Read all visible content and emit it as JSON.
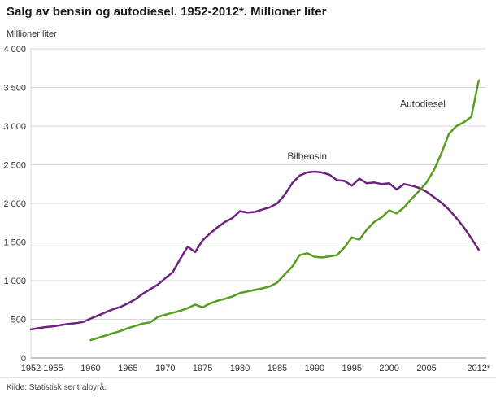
{
  "header": {
    "title": "Salg av bensin og autodiesel. 1952-2012*. Millioner liter",
    "unit_label": "Millioner liter"
  },
  "footer": {
    "source": "Kilde: Statistisk sentralbyrå."
  },
  "chart_data": {
    "type": "line",
    "title": "Salg av bensin og autodiesel. 1952-2012*. Millioner liter",
    "ylabel": "Millioner liter",
    "ylim": [
      0,
      4000
    ],
    "ytick_values": [
      0,
      500,
      1000,
      1500,
      2000,
      2500,
      3000,
      3500,
      4000
    ],
    "ytick_labels": [
      "0",
      "500",
      "1 000",
      "1 500",
      "2 000",
      "2 500",
      "3 000",
      "3 500",
      "4 000"
    ],
    "xlim": [
      1952,
      2013
    ],
    "xtick_values": [
      1952,
      1955,
      1960,
      1965,
      1970,
      1975,
      1980,
      1985,
      1990,
      1995,
      2000,
      2005,
      2012
    ],
    "xtick_labels": [
      "1952",
      "1955",
      "1960",
      "1965",
      "1970",
      "1975",
      "1980",
      "1985",
      "1990",
      "1995",
      "2000",
      "2005",
      "2012*"
    ],
    "grid": "horizontal",
    "legend_position": "inline-labels",
    "grid_color": "#d9d9d9",
    "axis_color": "#8c8c8c",
    "text_color": "#333333",
    "label_color": "#333333",
    "series": [
      {
        "name": "Bilbensin",
        "color": "#6e2180",
        "x_start": 1952,
        "x_step": 1,
        "values": [
          370,
          385,
          400,
          410,
          425,
          440,
          450,
          465,
          510,
          550,
          590,
          630,
          660,
          705,
          760,
          830,
          890,
          950,
          1030,
          1110,
          1280,
          1440,
          1370,
          1520,
          1610,
          1690,
          1760,
          1810,
          1900,
          1880,
          1890,
          1920,
          1950,
          2000,
          2110,
          2260,
          2360,
          2400,
          2410,
          2400,
          2370,
          2300,
          2290,
          2230,
          2320,
          2260,
          2270,
          2250,
          2260,
          2180,
          2250,
          2230,
          2200,
          2150,
          2080,
          2010,
          1920,
          1810,
          1690,
          1550,
          1400
        ],
        "label": {
          "text": "Bilbensin",
          "year": 1989,
          "value": 2570
        }
      },
      {
        "name": "Autodiesel",
        "color": "#579d1f",
        "x_start": 1960,
        "x_step": 1,
        "values": [
          230,
          260,
          290,
          320,
          350,
          385,
          415,
          445,
          460,
          530,
          560,
          585,
          610,
          645,
          690,
          655,
          705,
          740,
          765,
          795,
          840,
          860,
          880,
          900,
          925,
          975,
          1080,
          1180,
          1330,
          1355,
          1310,
          1300,
          1315,
          1330,
          1430,
          1560,
          1530,
          1660,
          1760,
          1820,
          1910,
          1870,
          1950,
          2060,
          2160,
          2270,
          2430,
          2650,
          2900,
          3000,
          3050,
          3120,
          3590
        ],
        "label": {
          "text": "Autodiesel",
          "year": 2004.5,
          "value": 3250
        }
      }
    ]
  }
}
